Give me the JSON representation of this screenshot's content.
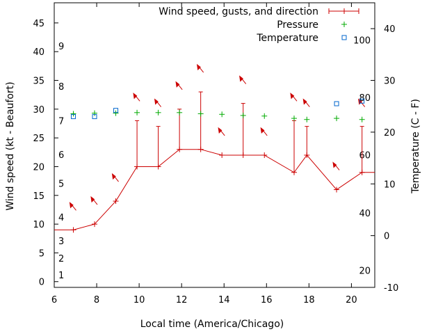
{
  "chart_data": {
    "type": "line",
    "xlabel": "Local time (America/Chicago)",
    "ylabel_left": "Wind speed (kt - Beaufort)",
    "ylabel_right": "Temperature (C - F)",
    "xlim": [
      6,
      21.1
    ],
    "ylim_left": [
      -1,
      48.5
    ],
    "ylim_right": [
      -10,
      45
    ],
    "x_ticks": [
      6,
      8,
      10,
      12,
      14,
      16,
      18,
      20
    ],
    "y_left_ticks": [
      0,
      5,
      10,
      15,
      20,
      25,
      30,
      35,
      40,
      45
    ],
    "y_right_ticks": [
      -10,
      0,
      10,
      20,
      30,
      40
    ],
    "beaufort_labels": [
      {
        "label": "1",
        "kt": 1.2
      },
      {
        "label": "2",
        "kt": 4.1
      },
      {
        "label": "3",
        "kt": 7.1
      },
      {
        "label": "4",
        "kt": 11.2
      },
      {
        "label": "5",
        "kt": 17.1
      },
      {
        "label": "6",
        "kt": 22.1
      },
      {
        "label": "7",
        "kt": 28.0
      },
      {
        "label": "8",
        "kt": 34.0
      },
      {
        "label": "9",
        "kt": 41.0
      }
    ],
    "fahrenheit_labels": [
      {
        "label": "20",
        "celsius": -6.7
      },
      {
        "label": "40",
        "celsius": 4.4
      },
      {
        "label": "60",
        "celsius": 15.6
      },
      {
        "label": "80",
        "celsius": 26.7
      },
      {
        "label": "100",
        "celsius": 37.8
      }
    ],
    "legend": {
      "position": "top-right",
      "entries": [
        "Wind speed, gusts, and direction",
        "Pressure",
        "Temperature"
      ]
    },
    "series": [
      {
        "name": "Wind speed, gusts, and direction",
        "color": "#cc0000",
        "x": [
          5.9,
          6.9,
          7.9,
          8.9,
          9.9,
          10.9,
          11.9,
          12.9,
          13.9,
          14.9,
          15.9,
          17.3,
          17.9,
          19.3,
          20.5,
          21.1
        ],
        "speed": [
          9,
          9,
          10,
          14,
          20,
          20,
          23,
          23,
          22,
          22,
          22,
          19,
          22,
          16,
          19,
          19
        ],
        "gust": [
          null,
          null,
          null,
          null,
          28,
          27,
          30,
          33,
          null,
          31,
          null,
          28,
          27,
          null,
          27,
          null
        ],
        "direction_deg": [
          null,
          330,
          330,
          330,
          330,
          330,
          330,
          330,
          330,
          330,
          330,
          330,
          330,
          330,
          330,
          null
        ]
      },
      {
        "name": "Pressure",
        "color": "#00aa00",
        "x": [
          6.9,
          7.9,
          8.9,
          9.9,
          10.9,
          11.9,
          12.9,
          13.9,
          14.9,
          15.9,
          17.3,
          17.9,
          19.3,
          20.5
        ],
        "y_left": [
          29.2,
          29.3,
          29.3,
          29.4,
          29.4,
          29.4,
          29.2,
          29.1,
          28.9,
          28.8,
          28.4,
          28.2,
          28.4,
          28.2
        ]
      },
      {
        "name": "Temperature",
        "color": "#0066cc",
        "x": [
          6.9,
          7.9,
          8.9,
          19.3,
          20.5
        ],
        "celsius": [
          23.0,
          23.0,
          24.2,
          25.5,
          26.0
        ]
      }
    ]
  }
}
